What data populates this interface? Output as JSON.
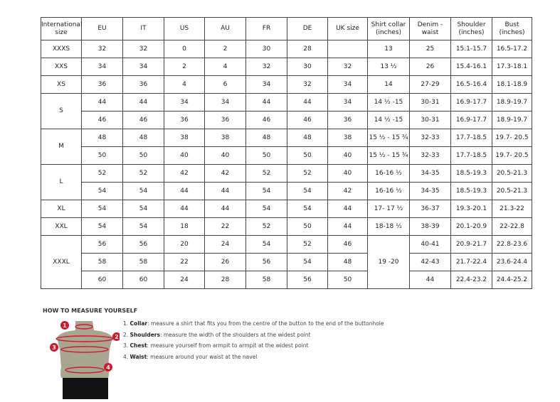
{
  "table": {
    "headers": [
      "International size",
      "EU",
      "IT",
      "US",
      "AU",
      "FR",
      "DE",
      "UK size",
      "Shirt collar (inches)",
      "Denim - waist",
      "Shoulder (inches)",
      "Bust (inches)"
    ],
    "groups": [
      {
        "size": "XXXS",
        "rows": [
          [
            "32",
            "32",
            "0",
            "2",
            "30",
            "28",
            "",
            "13",
            "25",
            "15.1-15.7",
            "16.5-17.2"
          ]
        ]
      },
      {
        "size": "XXS",
        "rows": [
          [
            "34",
            "34",
            "2",
            "4",
            "32",
            "30",
            "32",
            "13 ½",
            "26",
            "15.4-16.1",
            "17.3-18.1"
          ]
        ]
      },
      {
        "size": "XS",
        "rows": [
          [
            "36",
            "36",
            "4",
            "6",
            "34",
            "32",
            "34",
            "14",
            "27-29",
            "16.5-16.4",
            "18.1-18.9"
          ]
        ]
      },
      {
        "size": "S",
        "rows": [
          [
            "44",
            "44",
            "34",
            "34",
            "44",
            "44",
            "34",
            "14 ½ -15",
            "30-31",
            "16.9-17.7",
            "18.9-19.7"
          ],
          [
            "46",
            "46",
            "36",
            "36",
            "46",
            "46",
            "36",
            "14 ½ -15",
            "30-31",
            "16.9-17.7",
            "18.9-19.7"
          ]
        ]
      },
      {
        "size": "M",
        "rows": [
          [
            "48",
            "48",
            "38",
            "38",
            "48",
            "48",
            "38",
            "15 ½ - 15 ¾",
            "32-33",
            "17.7-18.5",
            "19.7- 20.5"
          ],
          [
            "50",
            "50",
            "40",
            "40",
            "50",
            "50",
            "40",
            "15 ½ - 15 ¾",
            "32-33",
            "17.7-18.5",
            "19.7- 20.5"
          ]
        ]
      },
      {
        "size": "L",
        "rows": [
          [
            "52",
            "52",
            "42",
            "42",
            "52",
            "52",
            "40",
            "16-16 ½",
            "34-35",
            "18.5-19.3",
            "20.5-21.3"
          ],
          [
            "54",
            "54",
            "44",
            "44",
            "54",
            "54",
            "42",
            "16-16 ½",
            "34-35",
            "18.5-19.3",
            "20.5-21.3"
          ]
        ]
      },
      {
        "size": "XL",
        "rows": [
          [
            "54",
            "54",
            "44",
            "44",
            "54",
            "54",
            "44",
            "17- 17 ½",
            "36-37",
            "19.3-20.1",
            "21.3-22"
          ]
        ]
      },
      {
        "size": "XXL",
        "rows": [
          [
            "54",
            "54",
            "18",
            "22",
            "52",
            "50",
            "44",
            "18-18 ½",
            "38-39",
            "20.1-20.9",
            "22-22.8"
          ]
        ]
      },
      {
        "size": "XXXL",
        "collar": "19 -20",
        "rows": [
          [
            "56",
            "56",
            "20",
            "24",
            "54",
            "52",
            "46",
            "",
            "40-41",
            "20.9-21.7",
            "22.8-23.6"
          ],
          [
            "58",
            "58",
            "22",
            "26",
            "56",
            "54",
            "48",
            "",
            "42-43",
            "21.7-22.4",
            "23.6-24.4"
          ],
          [
            "60",
            "60",
            "24",
            "28",
            "58",
            "56",
            "50",
            "",
            "44",
            "22.4-23.2",
            "24.4-25.2"
          ]
        ]
      }
    ]
  },
  "howto": {
    "title": "HOW TO MEASURE YOURSELF",
    "markers": [
      "1",
      "2",
      "3",
      "4"
    ],
    "steps": [
      {
        "num": "1.",
        "term": "Collar",
        "text": ": measure a shirt that fits you from the centre of the button to the end of the buttonhole"
      },
      {
        "num": "2.",
        "term": "Shoulders",
        "text": ": measure the width of the shoulders at the widest point"
      },
      {
        "num": "3.",
        "term": "Chest",
        "text": ": measure yourself from armpit to armpit at the widest point"
      },
      {
        "num": "4.",
        "term": "Waist",
        "text": ": measure around your waist at the navel"
      }
    ]
  },
  "colors": {
    "marker": "#d0182a",
    "torso": "#a8a590",
    "shorts": "#111111"
  }
}
